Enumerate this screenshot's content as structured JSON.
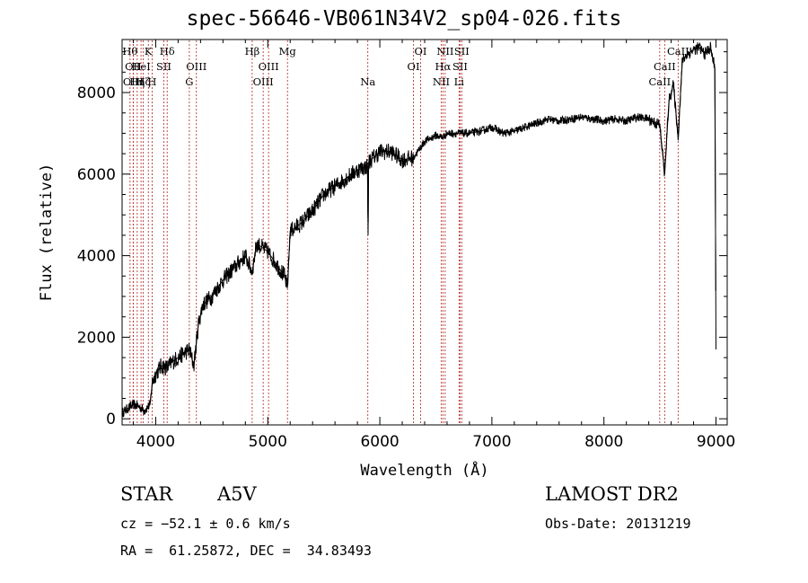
{
  "chart_data": {
    "type": "line",
    "title": "spec-56646-VB061N34V2_sp04-026.fits",
    "xlabel": "Wavelength (Å)",
    "ylabel": "Flux (relative)",
    "xlim": [
      3700,
      9100
    ],
    "ylim": [
      -150,
      9300
    ],
    "x_ticks": [
      4000,
      5000,
      6000,
      7000,
      8000,
      9000
    ],
    "y_ticks": [
      0,
      2000,
      4000,
      6000,
      8000
    ],
    "grid": false,
    "series": [
      {
        "x": [
          3700,
          3750,
          3800,
          3850,
          3900,
          3950,
          3970,
          4000,
          4050,
          4100,
          4150,
          4200,
          4250,
          4300,
          4340,
          4380,
          4420,
          4500,
          4600,
          4700,
          4800,
          4861,
          4900,
          4950,
          5000,
          5050,
          5100,
          5150,
          5175,
          5200,
          5300,
          5400,
          5500,
          5600,
          5700,
          5800,
          5890,
          5895,
          5900,
          6000,
          6100,
          6200,
          6300,
          6400,
          6500,
          6563,
          6600,
          6700,
          6800,
          6900,
          7000,
          7100,
          7200,
          7300,
          7400,
          7500,
          7600,
          7700,
          7800,
          7900,
          8000,
          8100,
          8200,
          8300,
          8400,
          8498,
          8542,
          8580,
          8620,
          8662,
          8700,
          8750,
          8800,
          8850,
          8900,
          8950,
          8990,
          9000
        ],
        "y": [
          150,
          250,
          350,
          300,
          200,
          350,
          900,
          1100,
          1300,
          1250,
          1400,
          1500,
          1600,
          1700,
          1300,
          2300,
          2800,
          3000,
          3400,
          3700,
          4000,
          3600,
          4300,
          4200,
          4100,
          3900,
          3700,
          3500,
          3200,
          4600,
          4800,
          5100,
          5500,
          5700,
          5900,
          6100,
          6200,
          4500,
          6300,
          6550,
          6550,
          6350,
          6400,
          6800,
          6950,
          6900,
          7000,
          7000,
          7000,
          7050,
          7150,
          7000,
          7050,
          7150,
          7250,
          7350,
          7300,
          7350,
          7400,
          7350,
          7300,
          7350,
          7300,
          7400,
          7350,
          7200,
          6000,
          7800,
          8200,
          6900,
          8800,
          8950,
          9050,
          9100,
          8950,
          9100,
          8600,
          1700
        ]
      }
    ],
    "line_labels": [
      {
        "wl": 3771,
        "text": "Hθ",
        "row": 0
      },
      {
        "wl": 3799,
        "text": "OII",
        "row": 1
      },
      {
        "wl": 3799,
        "text": "OIII",
        "row": 2
      },
      {
        "wl": 3835,
        "text": "Hη",
        "row": 2
      },
      {
        "wl": 3869,
        "text": "HeI",
        "row": 1
      },
      {
        "wl": 3889,
        "text": "Hζ",
        "row": 2
      },
      {
        "wl": 3934,
        "text": "K",
        "row": 0
      },
      {
        "wl": 3968,
        "text": "H",
        "row": 2
      },
      {
        "wl": 4072,
        "text": "SII",
        "row": 1
      },
      {
        "wl": 4102,
        "text": "Hδ",
        "row": 0
      },
      {
        "wl": 4300,
        "text": "G",
        "row": 2
      },
      {
        "wl": 4363,
        "text": "OIII",
        "row": 1
      },
      {
        "wl": 4861,
        "text": "Hβ",
        "row": 0
      },
      {
        "wl": 4959,
        "text": "OIII",
        "row": 2
      },
      {
        "wl": 5007,
        "text": "OIII",
        "row": 1
      },
      {
        "wl": 5176,
        "text": "Mg",
        "row": 0
      },
      {
        "wl": 5893,
        "text": "Na",
        "row": 2
      },
      {
        "wl": 6300,
        "text": "OI",
        "row": 1
      },
      {
        "wl": 6364,
        "text": "OI",
        "row": 0
      },
      {
        "wl": 6548,
        "text": "NII",
        "row": 2
      },
      {
        "wl": 6563,
        "text": "Hα",
        "row": 1
      },
      {
        "wl": 6583,
        "text": "NII",
        "row": 0
      },
      {
        "wl": 6707,
        "text": "Li",
        "row": 2
      },
      {
        "wl": 6716,
        "text": "SII",
        "row": 1
      },
      {
        "wl": 6731,
        "text": "SII",
        "row": 0
      },
      {
        "wl": 8498,
        "text": "CaII",
        "row": 2
      },
      {
        "wl": 8542,
        "text": "CaII",
        "row": 1
      },
      {
        "wl": 8662,
        "text": "CaII",
        "row": 0
      }
    ]
  },
  "info": {
    "object_class": "STAR",
    "subclass": "A5V",
    "survey": "LAMOST DR2",
    "redshift": "cz = −52.1 ± 0.6 km/s",
    "obs_date": "Obs-Date: 20131219",
    "coords": "RA =  61.25872, DEC =  34.83493"
  }
}
